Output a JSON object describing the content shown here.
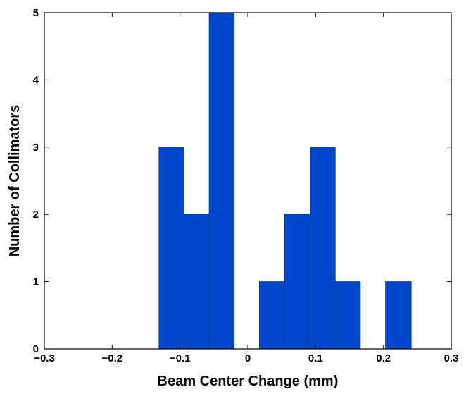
{
  "chart_data": {
    "type": "bar",
    "title": "",
    "xlabel": "Beam Center Change (mm)",
    "ylabel": "Number of Collimators",
    "xlim": [
      -0.3,
      0.3
    ],
    "ylim": [
      0,
      5
    ],
    "xticks": [
      "−0.3",
      "−0.2",
      "−0.1",
      "0",
      "0.1",
      "0.2",
      "0.3"
    ],
    "yticks": [
      "0",
      "1",
      "2",
      "3",
      "4",
      "5"
    ],
    "bins": [
      {
        "x0": -0.131,
        "x1": -0.094,
        "value": 3
      },
      {
        "x0": -0.094,
        "x1": -0.057,
        "value": 2
      },
      {
        "x0": -0.057,
        "x1": -0.02,
        "value": 5
      },
      {
        "x0": 0.017,
        "x1": 0.054,
        "value": 1
      },
      {
        "x0": 0.054,
        "x1": 0.092,
        "value": 2
      },
      {
        "x0": 0.092,
        "x1": 0.129,
        "value": 3
      },
      {
        "x0": 0.129,
        "x1": 0.166,
        "value": 1
      },
      {
        "x0": 0.203,
        "x1": 0.241,
        "value": 1
      }
    ],
    "bar_color": "#0047cc",
    "bar_edge_color": "#003399",
    "grid": false,
    "legend": "none"
  }
}
